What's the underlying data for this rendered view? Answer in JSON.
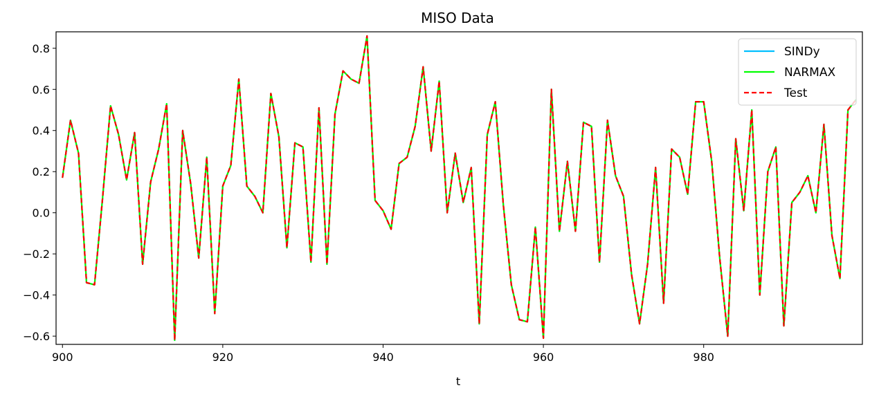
{
  "chart_data": {
    "type": "line",
    "title": "MISO Data",
    "xlabel": "t",
    "ylabel": "",
    "xlim": [
      899.2,
      999.8
    ],
    "ylim": [
      -0.64,
      0.88
    ],
    "xticks": [
      900,
      920,
      940,
      960,
      980
    ],
    "yticks": [
      -0.6,
      -0.4,
      -0.2,
      0.0,
      0.2,
      0.4,
      0.6,
      0.8
    ],
    "ytick_labels": [
      "−0.6",
      "−0.4",
      "−0.2",
      "0.0",
      "0.2",
      "0.4",
      "0.6",
      "0.8"
    ],
    "legend_position": "top-right",
    "x": [
      900,
      901,
      902,
      903,
      904,
      905,
      906,
      907,
      908,
      909,
      910,
      911,
      912,
      913,
      914,
      915,
      916,
      917,
      918,
      919,
      920,
      921,
      922,
      923,
      924,
      925,
      926,
      927,
      928,
      929,
      930,
      931,
      932,
      933,
      934,
      935,
      936,
      937,
      938,
      939,
      940,
      941,
      942,
      943,
      944,
      945,
      946,
      947,
      948,
      949,
      950,
      951,
      952,
      953,
      954,
      955,
      956,
      957,
      958,
      959,
      960,
      961,
      962,
      963,
      964,
      965,
      966,
      967,
      968,
      969,
      970,
      971,
      972,
      973,
      974,
      975,
      976,
      977,
      978,
      979,
      980,
      981,
      982,
      983,
      984,
      985,
      986,
      987,
      988,
      989,
      990,
      991,
      992,
      993,
      994,
      995,
      996,
      997,
      998,
      999
    ],
    "series": [
      {
        "name": "SINDy",
        "color": "#00bfff",
        "style": "solid",
        "values": [
          0.17,
          0.45,
          0.29,
          -0.34,
          -0.35,
          0.07,
          0.52,
          0.38,
          0.16,
          0.39,
          -0.25,
          0.15,
          0.31,
          0.53,
          -0.62,
          0.4,
          0.14,
          -0.22,
          0.27,
          -0.49,
          0.13,
          0.23,
          0.65,
          0.13,
          0.08,
          0.0,
          0.58,
          0.37,
          -0.17,
          0.34,
          0.32,
          -0.24,
          0.51,
          -0.25,
          0.48,
          0.69,
          0.65,
          0.63,
          0.86,
          0.06,
          0.01,
          -0.08,
          0.24,
          0.27,
          0.42,
          0.71,
          0.3,
          0.64,
          0.0,
          0.29,
          0.05,
          0.22,
          -0.54,
          0.38,
          0.54,
          0.04,
          -0.35,
          -0.52,
          -0.53,
          -0.07,
          -0.61,
          0.6,
          -0.09,
          0.25,
          -0.09,
          0.44,
          0.42,
          -0.24,
          0.45,
          0.18,
          0.08,
          -0.3,
          -0.54,
          -0.25,
          0.22,
          -0.44,
          0.31,
          0.27,
          0.09,
          0.54,
          0.54,
          0.25,
          -0.22,
          -0.6,
          0.36,
          0.01,
          0.5,
          -0.4,
          0.2,
          0.32,
          -0.55,
          0.05,
          0.1,
          0.18,
          0.0,
          0.43,
          -0.11,
          -0.32,
          0.5,
          0.55
        ]
      },
      {
        "name": "NARMAX",
        "color": "#00ff00",
        "style": "solid",
        "values": [
          0.17,
          0.45,
          0.29,
          -0.34,
          -0.35,
          0.07,
          0.52,
          0.38,
          0.16,
          0.39,
          -0.25,
          0.15,
          0.31,
          0.53,
          -0.62,
          0.4,
          0.14,
          -0.22,
          0.27,
          -0.49,
          0.13,
          0.23,
          0.65,
          0.13,
          0.08,
          0.0,
          0.58,
          0.37,
          -0.17,
          0.34,
          0.32,
          -0.24,
          0.51,
          -0.25,
          0.48,
          0.69,
          0.65,
          0.63,
          0.86,
          0.06,
          0.01,
          -0.08,
          0.24,
          0.27,
          0.42,
          0.71,
          0.3,
          0.64,
          0.0,
          0.29,
          0.05,
          0.22,
          -0.54,
          0.38,
          0.54,
          0.04,
          -0.35,
          -0.52,
          -0.53,
          -0.07,
          -0.61,
          0.6,
          -0.09,
          0.25,
          -0.09,
          0.44,
          0.42,
          -0.24,
          0.45,
          0.18,
          0.08,
          -0.3,
          -0.54,
          -0.25,
          0.22,
          -0.44,
          0.31,
          0.27,
          0.09,
          0.54,
          0.54,
          0.25,
          -0.22,
          -0.6,
          0.36,
          0.01,
          0.5,
          -0.4,
          0.2,
          0.32,
          -0.55,
          0.05,
          0.1,
          0.18,
          0.0,
          0.43,
          -0.11,
          -0.32,
          0.5,
          0.55
        ]
      },
      {
        "name": "Test",
        "color": "#ff0000",
        "style": "dashed",
        "values": [
          0.17,
          0.45,
          0.29,
          -0.34,
          -0.35,
          0.07,
          0.52,
          0.38,
          0.16,
          0.39,
          -0.25,
          0.15,
          0.31,
          0.53,
          -0.62,
          0.4,
          0.14,
          -0.22,
          0.27,
          -0.49,
          0.13,
          0.23,
          0.65,
          0.13,
          0.08,
          0.0,
          0.58,
          0.37,
          -0.17,
          0.34,
          0.32,
          -0.24,
          0.51,
          -0.25,
          0.48,
          0.69,
          0.65,
          0.63,
          0.86,
          0.06,
          0.01,
          -0.08,
          0.24,
          0.27,
          0.42,
          0.71,
          0.3,
          0.64,
          0.0,
          0.29,
          0.05,
          0.22,
          -0.54,
          0.38,
          0.54,
          0.04,
          -0.35,
          -0.52,
          -0.53,
          -0.07,
          -0.61,
          0.6,
          -0.09,
          0.25,
          -0.09,
          0.44,
          0.42,
          -0.24,
          0.45,
          0.18,
          0.08,
          -0.3,
          -0.54,
          -0.25,
          0.22,
          -0.44,
          0.31,
          0.27,
          0.09,
          0.54,
          0.54,
          0.25,
          -0.22,
          -0.6,
          0.36,
          0.01,
          0.5,
          -0.4,
          0.2,
          0.32,
          -0.55,
          0.05,
          0.1,
          0.18,
          0.0,
          0.43,
          -0.11,
          -0.32,
          0.5,
          0.55
        ]
      }
    ]
  }
}
